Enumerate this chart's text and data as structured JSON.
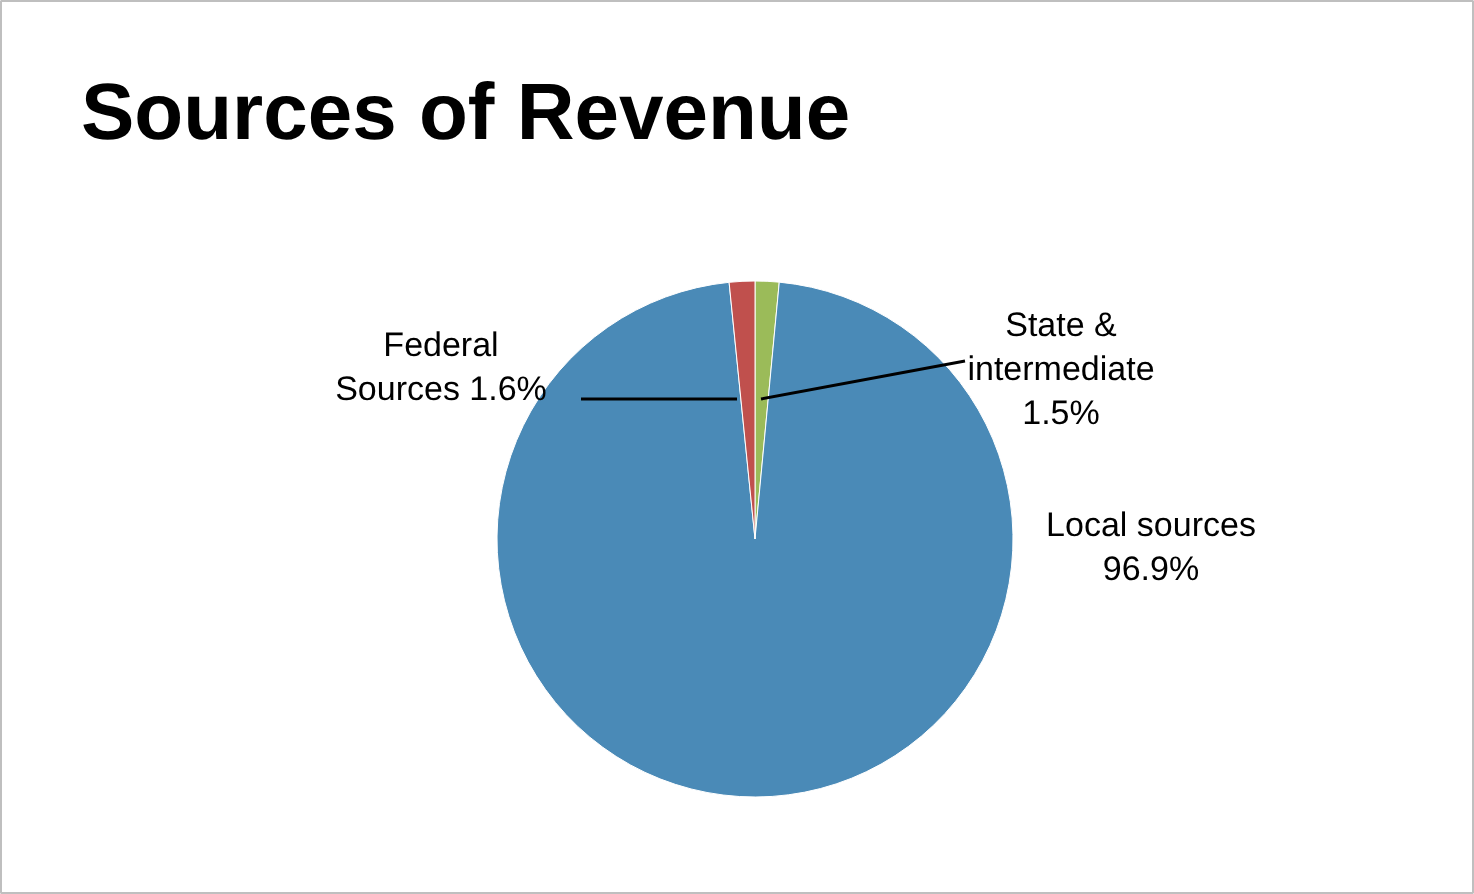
{
  "chart_data": {
    "type": "pie",
    "title": "Sources of Revenue",
    "categories": [
      "State & intermediate",
      "Local sources",
      "Federal Sources"
    ],
    "values": [
      1.5,
      96.9,
      1.6
    ],
    "colors": [
      "#9bbb59",
      "#4a8ab7",
      "#c0504d"
    ],
    "value_labels": [
      "1.5%",
      "96.9%",
      "1.6%"
    ]
  }
}
